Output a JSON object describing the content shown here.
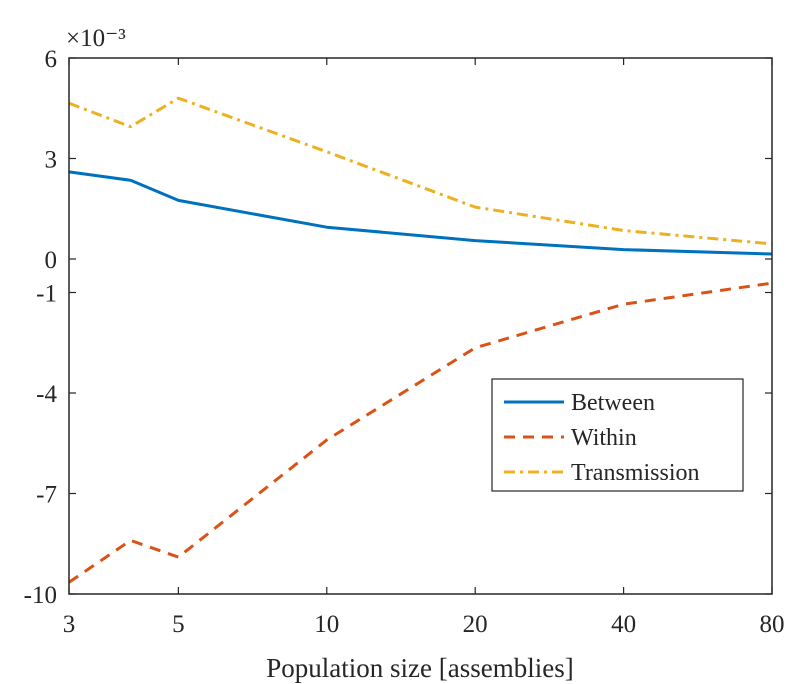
{
  "chart_data": {
    "type": "line",
    "title": "",
    "xlabel": "Population size [assemblies]",
    "ylabel": "",
    "x_scale": "log",
    "xlim": [
      3,
      80
    ],
    "ylim": [
      -10,
      6
    ],
    "y_exponent_label": "×10⁻³",
    "x_ticks": [
      {
        "value": 3,
        "label": "3"
      },
      {
        "value": 5,
        "label": "5"
      },
      {
        "value": 10,
        "label": "10"
      },
      {
        "value": 20,
        "label": "20"
      },
      {
        "value": 40,
        "label": "40"
      },
      {
        "value": 80,
        "label": "80"
      }
    ],
    "y_ticks": [
      {
        "value": 6,
        "label": "6"
      },
      {
        "value": 3,
        "label": "3"
      },
      {
        "value": 0,
        "label": "0"
      },
      {
        "value": -1,
        "label": "-1"
      },
      {
        "value": -4,
        "label": "-4"
      },
      {
        "value": -7,
        "label": "-7"
      },
      {
        "value": -10,
        "label": "-10"
      }
    ],
    "x": [
      3,
      4,
      5,
      10,
      20,
      40,
      80
    ],
    "series": [
      {
        "name": "Between",
        "color": "#0072BD",
        "dash": "solid",
        "values": [
          2.6,
          2.35,
          1.75,
          0.95,
          0.55,
          0.28,
          0.15
        ]
      },
      {
        "name": "Within",
        "color": "#D95319",
        "dash": "dashed",
        "values": [
          -9.65,
          -8.4,
          -8.9,
          -5.4,
          -2.65,
          -1.35,
          -0.72
        ]
      },
      {
        "name": "Transmission",
        "color": "#EDB120",
        "dash": "dashdot",
        "values": [
          4.65,
          3.95,
          4.8,
          3.2,
          1.55,
          0.85,
          0.45
        ]
      }
    ],
    "legend_position": "lower-right",
    "grid": false
  }
}
